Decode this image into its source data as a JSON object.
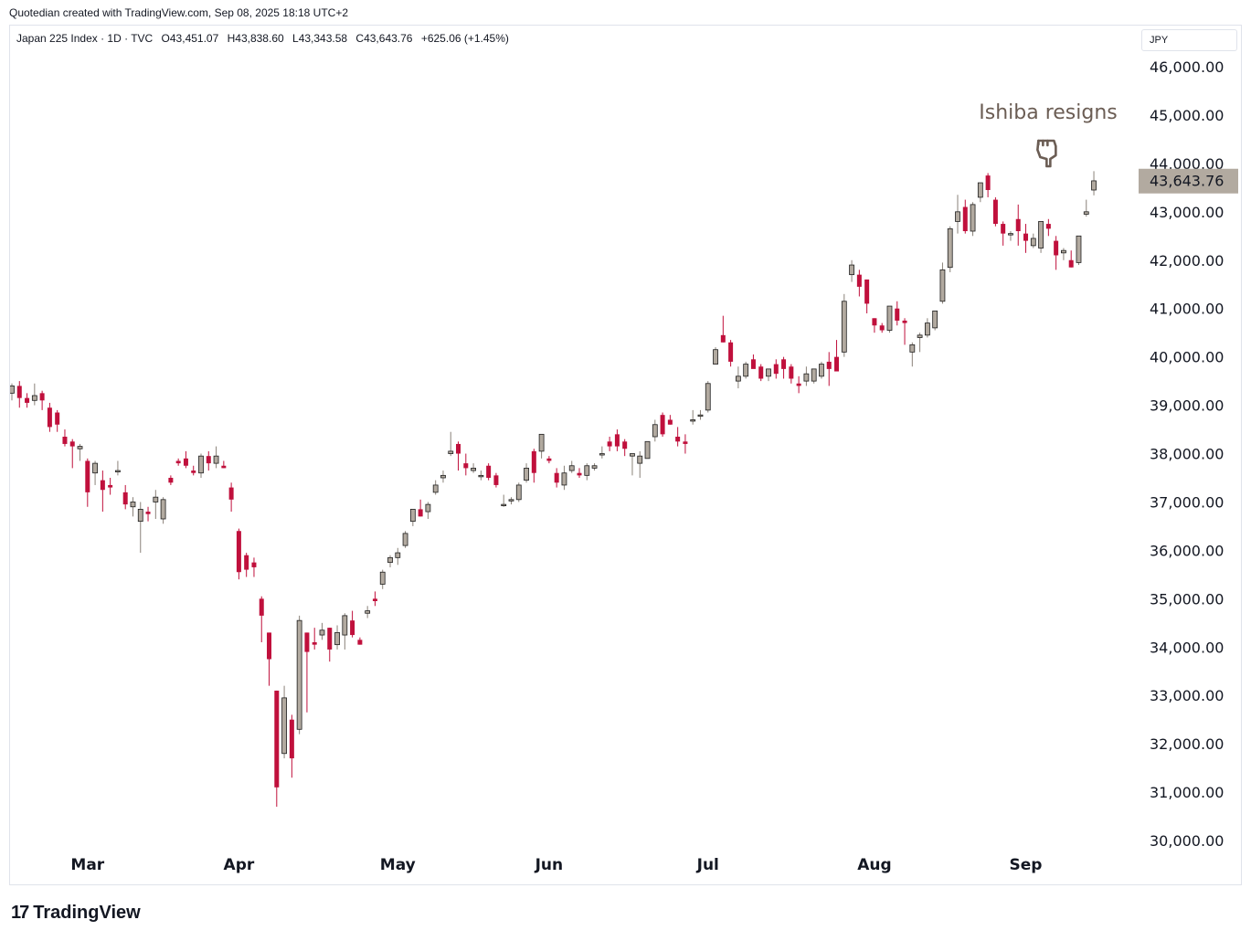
{
  "credit": "Quotedian created with TradingView.com, Sep 08, 2025 18:18 UTC+2",
  "legend": {
    "symbol": "Japan 225 Index · 1D · TVC",
    "open": "O43,451.07",
    "high": "H43,838.60",
    "low": "L43,343.58",
    "close": "C43,643.76",
    "change": "+625.06 (+1.45%)"
  },
  "currency": "JPY",
  "brand": "TradingView",
  "brand_logo": "17",
  "colors": {
    "up": "#b2aaa0",
    "down": "#c0103c",
    "label_bg": "#b2aaa0",
    "annotation": "#6b5d54"
  },
  "chart_data": {
    "type": "candlestick",
    "y_ticks": [
      "46,000.00",
      "45,000.00",
      "44,000.00",
      "43,000.00",
      "42,000.00",
      "41,000.00",
      "40,000.00",
      "39,000.00",
      "38,000.00",
      "37,000.00",
      "36,000.00",
      "35,000.00",
      "34,000.00",
      "33,000.00",
      "32,000.00",
      "31,000.00",
      "30,000.00"
    ],
    "ylim": [
      29850,
      46850
    ],
    "x_ticks": [
      "Mar",
      "Apr",
      "May",
      "Jun",
      "Jul",
      "Aug",
      "Sep"
    ],
    "x_tick_index": [
      10,
      30,
      51,
      71,
      92,
      114,
      134
    ],
    "last_price": 43643.76,
    "last_price_label": "43,643.76",
    "annotation": {
      "text": "Ishiba resigns",
      "icon": "pointing-hand-down-icon",
      "bar_index": 137
    },
    "ohlc": [
      [
        39250,
        39450,
        39100,
        39400
      ],
      [
        39400,
        39500,
        38950,
        39150
      ],
      [
        39150,
        39250,
        38950,
        39050
      ],
      [
        39100,
        39450,
        39000,
        39200
      ],
      [
        39250,
        39300,
        38900,
        39100
      ],
      [
        38950,
        39050,
        38450,
        38550
      ],
      [
        38850,
        38900,
        38450,
        38600
      ],
      [
        38350,
        38500,
        38150,
        38200
      ],
      [
        38250,
        38300,
        37700,
        38150
      ],
      [
        38100,
        38200,
        37850,
        38150
      ],
      [
        37850,
        37900,
        36900,
        37200
      ],
      [
        37600,
        37850,
        37350,
        37800
      ],
      [
        37450,
        37650,
        36800,
        37250
      ],
      [
        37350,
        37500,
        37150,
        37300
      ],
      [
        37650,
        37850,
        37550,
        37650
      ],
      [
        37200,
        37350,
        36850,
        36950
      ],
      [
        36900,
        37100,
        36700,
        37000
      ],
      [
        36600,
        37000,
        35950,
        36850
      ],
      [
        36800,
        36900,
        36600,
        36750
      ],
      [
        37000,
        37250,
        36650,
        37100
      ],
      [
        36650,
        37100,
        36550,
        37050
      ],
      [
        37500,
        37550,
        37350,
        37400
      ],
      [
        37850,
        37900,
        37750,
        37800
      ],
      [
        37900,
        38050,
        37700,
        37750
      ],
      [
        37650,
        37750,
        37550,
        37600
      ],
      [
        37600,
        38000,
        37500,
        37950
      ],
      [
        37950,
        38050,
        37650,
        37800
      ],
      [
        37800,
        38150,
        37700,
        37950
      ],
      [
        37750,
        37850,
        37700,
        37700
      ],
      [
        37300,
        37400,
        36800,
        37050
      ],
      [
        36400,
        36450,
        35400,
        35550
      ],
      [
        35900,
        35950,
        35450,
        35600
      ],
      [
        35750,
        35850,
        35450,
        35650
      ],
      [
        35000,
        35050,
        34100,
        34650
      ],
      [
        34300,
        34300,
        33200,
        33750
      ],
      [
        33100,
        33100,
        30700,
        31100
      ],
      [
        31800,
        33200,
        31700,
        32950
      ],
      [
        32500,
        32600,
        31300,
        31700
      ],
      [
        32300,
        34650,
        32200,
        34550
      ],
      [
        34300,
        34300,
        32650,
        33900
      ],
      [
        34100,
        34400,
        33950,
        34050
      ],
      [
        34250,
        34500,
        34150,
        34350
      ],
      [
        34400,
        34400,
        33700,
        33950
      ],
      [
        34050,
        34450,
        33950,
        34300
      ],
      [
        34250,
        34700,
        33950,
        34650
      ],
      [
        34550,
        34750,
        34200,
        34250
      ],
      [
        34150,
        34200,
        34050,
        34050
      ],
      [
        34700,
        34850,
        34600,
        34750
      ],
      [
        35000,
        35150,
        34850,
        34950
      ],
      [
        35300,
        35600,
        35200,
        35550
      ],
      [
        35750,
        35900,
        35650,
        35850
      ],
      [
        35850,
        36050,
        35700,
        35950
      ],
      [
        36100,
        36400,
        36050,
        36350
      ],
      [
        36600,
        36850,
        36500,
        36850
      ],
      [
        36850,
        37050,
        36700,
        36700
      ],
      [
        36800,
        37000,
        36650,
        36950
      ],
      [
        37200,
        37450,
        37150,
        37350
      ],
      [
        37500,
        37650,
        37400,
        37550
      ],
      [
        38000,
        38450,
        37950,
        38050
      ],
      [
        38200,
        38250,
        37650,
        38000
      ],
      [
        37800,
        38000,
        37550,
        37700
      ],
      [
        37650,
        37800,
        37600,
        37700
      ],
      [
        37550,
        37650,
        37450,
        37550
      ],
      [
        37750,
        37800,
        37450,
        37500
      ],
      [
        37550,
        37600,
        37300,
        37350
      ],
      [
        36950,
        37150,
        36900,
        36950
      ],
      [
        37050,
        37100,
        36950,
        37050
      ],
      [
        37050,
        37400,
        37000,
        37350
      ],
      [
        37450,
        37800,
        37400,
        37700
      ],
      [
        38050,
        38100,
        37400,
        37600
      ],
      [
        38050,
        38400,
        37900,
        38400
      ],
      [
        37900,
        37950,
        37800,
        37850
      ],
      [
        37600,
        37700,
        37300,
        37400
      ],
      [
        37350,
        37750,
        37250,
        37600
      ],
      [
        37650,
        37850,
        37600,
        37750
      ],
      [
        37600,
        37700,
        37500,
        37550
      ],
      [
        37550,
        37800,
        37450,
        37750
      ],
      [
        37700,
        37800,
        37650,
        37750
      ],
      [
        38000,
        38150,
        37900,
        38000
      ],
      [
        38250,
        38350,
        38050,
        38150
      ],
      [
        38400,
        38500,
        38050,
        38150
      ],
      [
        38250,
        38300,
        37950,
        38100
      ],
      [
        37950,
        38000,
        37550,
        38000
      ],
      [
        37800,
        38050,
        37500,
        37950
      ],
      [
        37900,
        38250,
        37900,
        38250
      ],
      [
        38350,
        38700,
        38250,
        38600
      ],
      [
        38800,
        38850,
        38350,
        38400
      ],
      [
        38700,
        38800,
        38600,
        38600
      ],
      [
        38350,
        38550,
        38150,
        38250
      ],
      [
        38250,
        38400,
        38000,
        38200
      ],
      [
        38700,
        38900,
        38600,
        38700
      ],
      [
        38800,
        38900,
        38700,
        38800
      ],
      [
        38900,
        39500,
        38850,
        39450
      ],
      [
        39850,
        40200,
        39850,
        40150
      ],
      [
        40450,
        40850,
        40300,
        40300
      ],
      [
        40300,
        40350,
        39800,
        39900
      ],
      [
        39500,
        39800,
        39350,
        39600
      ],
      [
        39600,
        39900,
        39550,
        39850
      ],
      [
        39950,
        40050,
        39800,
        39750
      ],
      [
        39800,
        39850,
        39500,
        39550
      ],
      [
        39600,
        39700,
        39500,
        39750
      ],
      [
        39850,
        39950,
        39550,
        39650
      ],
      [
        39950,
        40000,
        39550,
        39750
      ],
      [
        39800,
        39850,
        39450,
        39550
      ],
      [
        39450,
        39600,
        39250,
        39400
      ],
      [
        39500,
        39800,
        39400,
        39650
      ],
      [
        39500,
        39750,
        39450,
        39750
      ],
      [
        39600,
        39900,
        39550,
        39850
      ],
      [
        39900,
        40100,
        39400,
        39750
      ],
      [
        40000,
        40350,
        39800,
        39700
      ],
      [
        40100,
        41300,
        40000,
        41150
      ],
      [
        41700,
        42000,
        41550,
        41900
      ],
      [
        41700,
        41800,
        41250,
        41450
      ],
      [
        41600,
        41600,
        40900,
        41100
      ],
      [
        40800,
        40800,
        40500,
        40650
      ],
      [
        40650,
        40700,
        40500,
        40550
      ],
      [
        40550,
        41050,
        40500,
        41050
      ],
      [
        41000,
        41150,
        40650,
        40750
      ],
      [
        40750,
        40800,
        40250,
        40700
      ],
      [
        40100,
        40300,
        39800,
        40250
      ],
      [
        40400,
        40500,
        40100,
        40450
      ],
      [
        40450,
        40800,
        40400,
        40700
      ],
      [
        40600,
        40950,
        40550,
        40950
      ],
      [
        41150,
        41950,
        41100,
        41800
      ],
      [
        41850,
        42700,
        41750,
        42650
      ],
      [
        42800,
        43350,
        42550,
        43000
      ],
      [
        43100,
        43250,
        42550,
        42600
      ],
      [
        42600,
        43200,
        42500,
        43150
      ],
      [
        43300,
        43550,
        43200,
        43600
      ],
      [
        43750,
        43800,
        43300,
        43450
      ],
      [
        43250,
        43300,
        42700,
        42750
      ],
      [
        42750,
        42800,
        42300,
        42550
      ],
      [
        42550,
        42600,
        42400,
        42550
      ],
      [
        42850,
        43150,
        42300,
        42600
      ],
      [
        42550,
        42750,
        42150,
        42400
      ],
      [
        42300,
        42550,
        42250,
        42450
      ],
      [
        42250,
        42800,
        42150,
        42800
      ],
      [
        42750,
        42850,
        42500,
        42650
      ],
      [
        42400,
        42500,
        41800,
        42100
      ],
      [
        42150,
        42250,
        42000,
        42200
      ],
      [
        42000,
        42200,
        41850,
        41850
      ],
      [
        41950,
        42500,
        41900,
        42500
      ],
      [
        42950,
        43250,
        42900,
        43000
      ],
      [
        43450,
        43840,
        43340,
        43640
      ]
    ]
  }
}
